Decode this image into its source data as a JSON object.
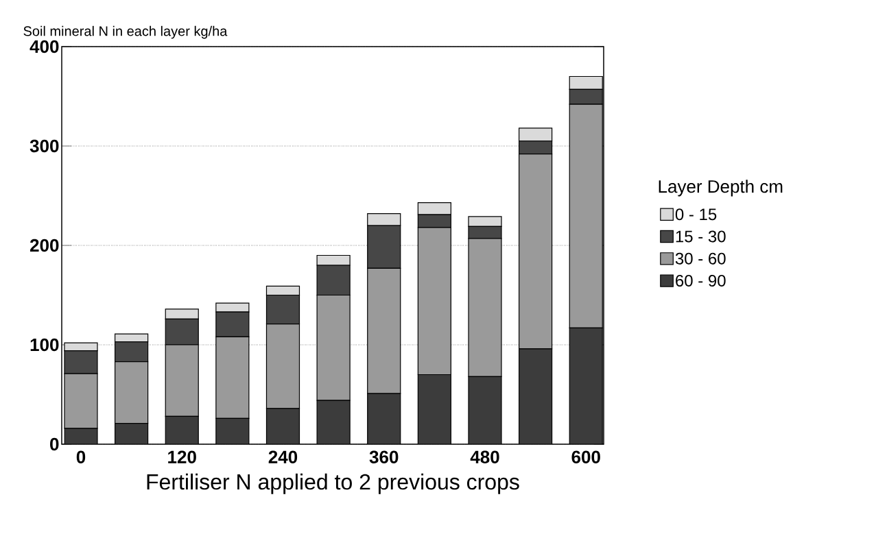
{
  "chart_data": {
    "type": "bar",
    "stacked": true,
    "ylabel": "Soil mineral N in each layer kg/ha",
    "xlabel": "Fertiliser N applied to 2 previous crops",
    "legend_title": "Layer Depth cm",
    "categories": [
      "0",
      null,
      "120",
      null,
      "240",
      null,
      "360",
      null,
      "480",
      null,
      "600"
    ],
    "series": [
      {
        "name": "60 - 90",
        "color": "#3c3c3c",
        "values": [
          16,
          21,
          28,
          26,
          36,
          44,
          51,
          70,
          68,
          96,
          117
        ]
      },
      {
        "name": "30 - 60",
        "color": "#9a9a9a",
        "values": [
          55,
          62,
          72,
          82,
          85,
          106,
          126,
          148,
          139,
          196,
          225
        ]
      },
      {
        "name": "15 - 30",
        "color": "#474747",
        "values": [
          23,
          20,
          26,
          25,
          29,
          30,
          43,
          13,
          12,
          13,
          15
        ]
      },
      {
        "name": "0 - 15",
        "color": "#dadada",
        "values": [
          8,
          8,
          10,
          9,
          9,
          10,
          12,
          12,
          10,
          13,
          13
        ]
      }
    ],
    "ylim": [
      0,
      400
    ],
    "yticks": [
      0,
      100,
      200,
      300,
      400
    ],
    "grid": "y",
    "legend": "right"
  }
}
